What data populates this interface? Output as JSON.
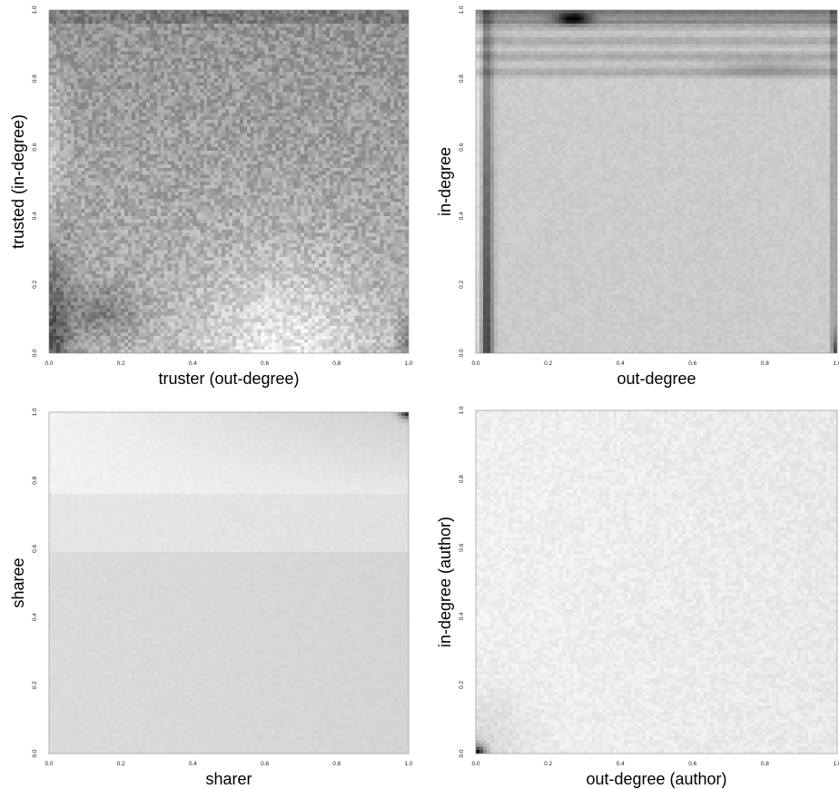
{
  "chart_data": [
    {
      "type": "heatmap",
      "xlabel": "truster (out-degree)",
      "ylabel": "trusted (in-degree)",
      "xlim": [
        0,
        1
      ],
      "ylim": [
        0,
        1
      ],
      "xticks": [
        "0.0",
        "0.2",
        "0.4",
        "0.6",
        "0.8",
        "1.0"
      ],
      "yticks": [
        "0.0",
        "0.2",
        "0.4",
        "0.6",
        "0.8",
        "1.0"
      ],
      "colormap": "grayscale (darker = higher density)",
      "grid": false
    },
    {
      "type": "heatmap",
      "xlabel": "out-degree",
      "ylabel": "in-degree",
      "xlim": [
        0,
        1
      ],
      "ylim": [
        0,
        1
      ],
      "xticks": [
        "0.0",
        "0.2",
        "0.4",
        "0.6",
        "0.8",
        "1.0"
      ],
      "yticks": [
        "0.0",
        "0.2",
        "0.4",
        "0.6",
        "0.8",
        "1.0"
      ],
      "colormap": "grayscale (darker = higher density)",
      "grid": false
    },
    {
      "type": "heatmap",
      "xlabel": "sharer",
      "ylabel": "sharee",
      "xlim": [
        0,
        1
      ],
      "ylim": [
        0,
        1
      ],
      "xticks": [
        "0.0",
        "0.2",
        "0.4",
        "0.6",
        "0.8",
        "1.0"
      ],
      "yticks": [
        "0.0",
        "0.2",
        "0.4",
        "0.6",
        "0.8",
        "1.0"
      ],
      "colormap": "grayscale (darker = higher density)",
      "grid": false
    },
    {
      "type": "heatmap",
      "xlabel": "out-degree (author)",
      "ylabel": "in-degree (author)",
      "xlim": [
        0,
        1
      ],
      "ylim": [
        0,
        1
      ],
      "xticks": [
        "0.0",
        "0.2",
        "0.4",
        "0.6",
        "0.8",
        "1.0"
      ],
      "yticks": [
        "0.0",
        "0.2",
        "0.4",
        "0.6",
        "0.8",
        "1.0"
      ],
      "colormap": "grayscale (darker = higher density)",
      "grid": false
    }
  ]
}
